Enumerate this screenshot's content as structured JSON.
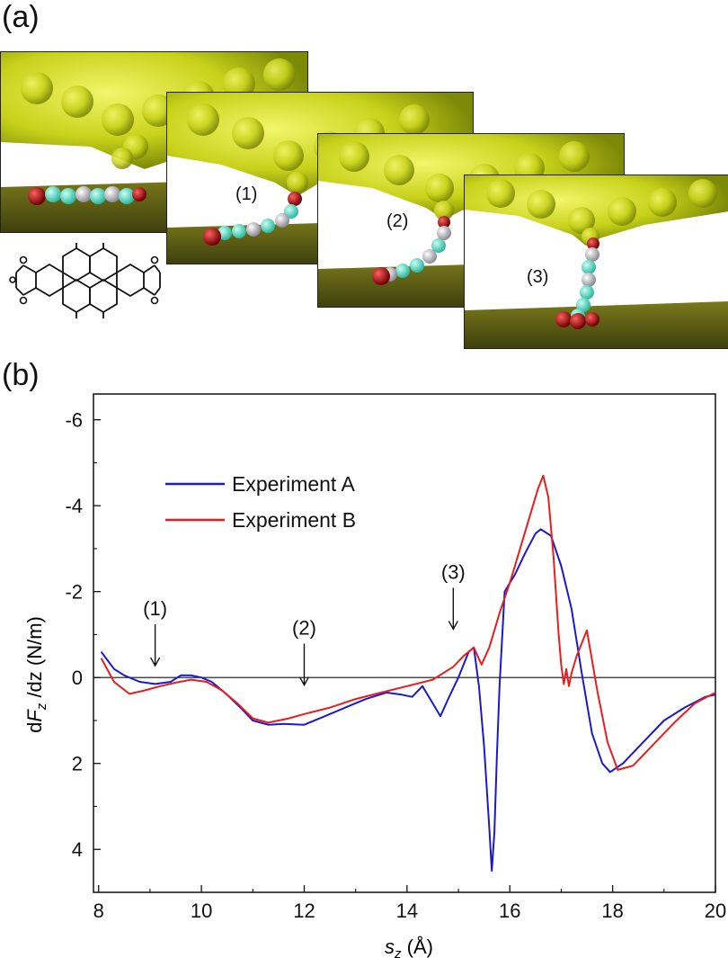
{
  "panel_labels": {
    "a": "(a)",
    "b": "(b)"
  },
  "snapshots": [
    {
      "label": ""
    },
    {
      "label": "(1)"
    },
    {
      "label": "(2)"
    },
    {
      "label": "(3)"
    }
  ],
  "colors": {
    "tip": "#c8d21a",
    "surface": "#5a5a14",
    "carbon": "#5fe0c8",
    "hydrogen": "#c8c8cc",
    "oxygen": "#b01010",
    "experiment_a": "#1a1acc",
    "experiment_b": "#e61e1e"
  },
  "chart_data": {
    "type": "line",
    "xlabel_var": "s",
    "xlabel_sub": "z",
    "xlabel_unit": " (Å)",
    "ylabel_prefix": "d",
    "ylabel_var": "F",
    "ylabel_sub": "z",
    "ylabel_rest": " /dz (N/m)",
    "xlim": [
      7.9,
      20
    ],
    "ylim": [
      5,
      -6.6
    ],
    "y_inverted": true,
    "xticks": [
      8,
      10,
      12,
      14,
      16,
      18,
      20
    ],
    "yticks": [
      -6,
      -4,
      -2,
      0,
      2,
      4
    ],
    "ytick_labels": [
      "-6",
      "-4",
      "-2",
      "0",
      "2",
      "4"
    ],
    "zero_line": true,
    "legend_position": "upper-left",
    "series": [
      {
        "name": "Experiment A",
        "color": "#1a1acc",
        "x": [
          8.05,
          8.3,
          8.5,
          8.8,
          9.1,
          9.4,
          9.6,
          9.8,
          10.0,
          10.2,
          10.5,
          10.8,
          11.0,
          11.3,
          11.6,
          12.0,
          12.4,
          12.8,
          13.2,
          13.6,
          13.9,
          14.1,
          14.3,
          14.5,
          14.65,
          14.8,
          15.0,
          15.2,
          15.3,
          15.4,
          15.5,
          15.6,
          15.65,
          15.7,
          15.75,
          15.8,
          15.9,
          16.0,
          16.1,
          16.3,
          16.5,
          16.6,
          16.8,
          17.0,
          17.2,
          17.4,
          17.6,
          17.8,
          17.95,
          18.2,
          18.6,
          19.0,
          19.4,
          19.8,
          20.0
        ],
        "y": [
          -0.6,
          -0.2,
          -0.05,
          0.1,
          0.15,
          0.1,
          -0.05,
          -0.05,
          0.0,
          0.1,
          0.4,
          0.75,
          1.0,
          1.1,
          1.08,
          1.1,
          0.9,
          0.7,
          0.5,
          0.35,
          0.4,
          0.45,
          0.2,
          0.6,
          0.9,
          0.5,
          0.0,
          -0.6,
          -0.7,
          0.2,
          1.6,
          3.5,
          4.5,
          3.6,
          1.8,
          0.2,
          -2.0,
          -2.2,
          -2.4,
          -2.9,
          -3.35,
          -3.45,
          -3.3,
          -2.6,
          -1.6,
          -0.1,
          1.3,
          2.0,
          2.2,
          2.0,
          1.5,
          1.0,
          0.7,
          0.45,
          0.4
        ]
      },
      {
        "name": "Experiment B",
        "color": "#e61e1e",
        "x": [
          8.05,
          8.3,
          8.6,
          8.9,
          9.2,
          9.5,
          9.8,
          10.1,
          10.4,
          10.7,
          11.0,
          11.3,
          11.7,
          12.0,
          12.5,
          13.0,
          13.5,
          14.0,
          14.5,
          14.9,
          15.1,
          15.3,
          15.45,
          15.6,
          15.8,
          16.0,
          16.2,
          16.4,
          16.55,
          16.65,
          16.75,
          16.85,
          16.95,
          17.0,
          17.05,
          17.1,
          17.15,
          17.2,
          17.3,
          17.5,
          17.7,
          17.9,
          18.1,
          18.4,
          18.8,
          19.2,
          19.6,
          20.0
        ],
        "y": [
          -0.45,
          0.1,
          0.38,
          0.3,
          0.2,
          0.12,
          0.05,
          0.1,
          0.3,
          0.6,
          0.95,
          1.05,
          0.95,
          0.85,
          0.7,
          0.5,
          0.35,
          0.2,
          0.05,
          -0.25,
          -0.5,
          -0.7,
          -0.3,
          -0.7,
          -1.5,
          -2.2,
          -3.0,
          -3.8,
          -4.4,
          -4.7,
          -4.2,
          -2.8,
          -1.0,
          -0.3,
          0.15,
          -0.2,
          0.2,
          -0.1,
          -0.5,
          -1.1,
          0.3,
          1.5,
          2.15,
          2.05,
          1.55,
          1.05,
          0.6,
          0.35
        ]
      }
    ],
    "annotations": [
      {
        "text": "(1)",
        "x": 9.1,
        "y_arrow_tip": -0.15
      },
      {
        "text": "(2)",
        "x": 12.0,
        "y_arrow_tip": 0.3
      },
      {
        "text": "(3)",
        "x": 14.9,
        "y_arrow_tip": -1.0
      }
    ]
  }
}
